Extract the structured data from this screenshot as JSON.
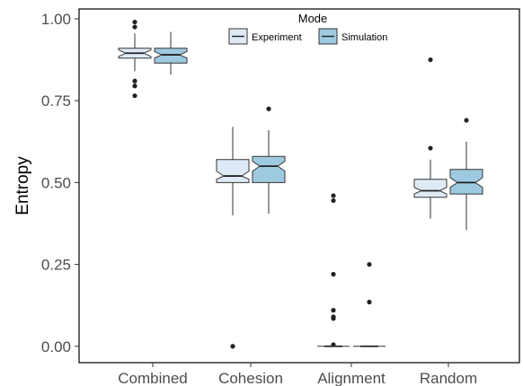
{
  "chart_data": {
    "type": "boxplot",
    "notched": true,
    "categories": [
      "Combined",
      "Cohesion",
      "Alignment",
      "Random"
    ],
    "ylabel": "Entropy",
    "xlabel": "",
    "ylim": [
      -0.05,
      1.03
    ],
    "yticks": [
      0.0,
      0.25,
      0.5,
      0.75,
      1.0
    ],
    "ytick_labels": [
      "0.00",
      "0.25",
      "0.50",
      "0.75",
      "1.00"
    ],
    "grid": false,
    "legend": {
      "title": "Mode",
      "position": "top-center"
    },
    "series": [
      {
        "name": "Experiment",
        "color": "#deebf7",
        "boxes": [
          {
            "q1": 0.88,
            "median": 0.895,
            "q3": 0.91,
            "whisker_low": 0.84,
            "whisker_high": 0.955,
            "notch": [
              0.885,
              0.905
            ],
            "outliers": [
              0.99,
              0.975,
              0.81,
              0.795,
              0.765
            ]
          },
          {
            "q1": 0.5,
            "median": 0.52,
            "q3": 0.57,
            "whisker_low": 0.4,
            "whisker_high": 0.67,
            "notch": [
              0.51,
              0.535
            ],
            "outliers": [
              0.0
            ]
          },
          {
            "q1": 0.0,
            "median": 0.0,
            "q3": 0.0,
            "whisker_low": 0.0,
            "whisker_high": 0.0,
            "notch": [
              0.0,
              0.0
            ],
            "outliers": [
              0.46,
              0.445,
              0.22,
              0.11,
              0.09,
              0.085,
              0.005
            ]
          },
          {
            "q1": 0.455,
            "median": 0.475,
            "q3": 0.51,
            "whisker_low": 0.39,
            "whisker_high": 0.57,
            "notch": [
              0.465,
              0.485
            ],
            "outliers": [
              0.875,
              0.605
            ]
          }
        ]
      },
      {
        "name": "Simulation",
        "color": "#9ecae1",
        "boxes": [
          {
            "q1": 0.865,
            "median": 0.89,
            "q3": 0.91,
            "whisker_low": 0.83,
            "whisker_high": 0.96,
            "notch": [
              0.88,
              0.9
            ],
            "outliers": []
          },
          {
            "q1": 0.5,
            "median": 0.55,
            "q3": 0.58,
            "whisker_low": 0.405,
            "whisker_high": 0.66,
            "notch": [
              0.535,
              0.565
            ],
            "outliers": [
              0.725
            ]
          },
          {
            "q1": 0.0,
            "median": 0.0,
            "q3": 0.0,
            "whisker_low": 0.0,
            "whisker_high": 0.0,
            "notch": [
              0.0,
              0.0
            ],
            "outliers": [
              0.25,
              0.135
            ]
          },
          {
            "q1": 0.465,
            "median": 0.5,
            "q3": 0.54,
            "whisker_low": 0.355,
            "whisker_high": 0.625,
            "notch": [
              0.485,
              0.515
            ],
            "outliers": [
              0.69
            ]
          }
        ]
      }
    ]
  }
}
